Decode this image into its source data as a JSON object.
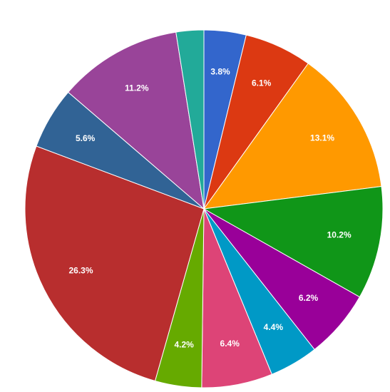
{
  "chart_data": {
    "type": "pie",
    "values": [
      3.8,
      6.1,
      13.1,
      10.2,
      6.2,
      4.4,
      6.4,
      4.2,
      26.3,
      5.6,
      11.2,
      2.5
    ],
    "value_labels": [
      "3.8%",
      "6.1%",
      "13.1%",
      "10.2%",
      "6.2%",
      "4.4%",
      "6.4%",
      "4.2%",
      "26.3%",
      "5.6%",
      "11.2%",
      null
    ],
    "colors": [
      "#3366cc",
      "#dc3912",
      "#ff9900",
      "#109618",
      "#990099",
      "#0099c6",
      "#dd4477",
      "#66aa00",
      "#b82e2e",
      "#316395",
      "#994499",
      "#22aa99"
    ]
  }
}
